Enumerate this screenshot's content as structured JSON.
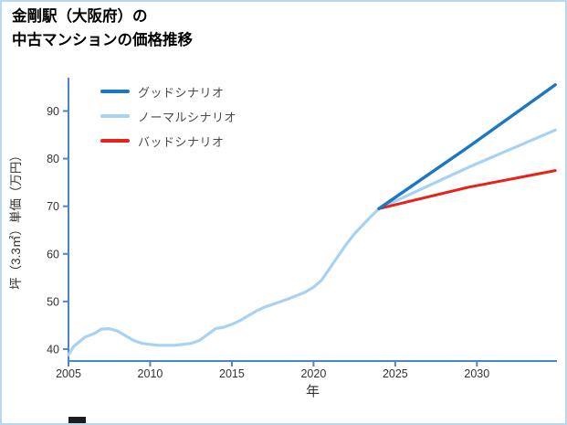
{
  "page": {
    "title_line1": "金剛駅（大阪府）の",
    "title_line2": "中古マンションの価格推移"
  },
  "chart_data": {
    "type": "line",
    "title": "金剛駅（大阪府）の中古マンションの価格推移",
    "xlabel": "年",
    "ylabel": "坪（3.3㎡）単価（万円）",
    "xlim": [
      2005,
      2034.9
    ],
    "ylim": [
      37.5,
      97
    ],
    "xticks": [
      2005,
      2010,
      2015,
      2020,
      2025,
      2030
    ],
    "yticks": [
      40,
      50,
      60,
      70,
      80,
      90
    ],
    "grid": false,
    "legend_position": "top-left",
    "colors": {
      "axis": "#4a86c2",
      "tick_label": "#333333",
      "good": "#1a78c2",
      "normal": "#a8d2f2",
      "bad": "#e62219"
    },
    "historical": {
      "color": "#a8d2f2",
      "x": [
        2005,
        2005.3,
        2006,
        2006.6,
        2007,
        2007.5,
        2008,
        2008.5,
        2009,
        2009.5,
        2010,
        2010.5,
        2011,
        2011.5,
        2012,
        2012.5,
        2013,
        2013.5,
        2014,
        2014.5,
        2015,
        2015.5,
        2016,
        2016.5,
        2017,
        2017.5,
        2018,
        2018.5,
        2019,
        2019.5,
        2020,
        2020.5,
        2021,
        2021.5,
        2022,
        2022.5,
        2023,
        2023.5,
        2024
      ],
      "y": [
        38.8,
        40.5,
        42.5,
        43.3,
        44.2,
        44.3,
        43.8,
        42.8,
        41.8,
        41.2,
        41.0,
        40.8,
        40.8,
        40.8,
        41.0,
        41.2,
        41.8,
        43.0,
        44.3,
        44.6,
        45.2,
        46.0,
        47.0,
        48.0,
        48.8,
        49.4,
        50.0,
        50.6,
        51.3,
        52.0,
        53.0,
        54.5,
        57.0,
        59.5,
        62.0,
        64.2,
        66.0,
        67.8,
        69.5
      ]
    },
    "series": [
      {
        "name": "グッドシナリオ",
        "color": "#1a78c2",
        "x": [
          2024,
          2029.5,
          2034.8
        ],
        "y": [
          69.5,
          82.5,
          95.5
        ]
      },
      {
        "name": "ノーマルシナリオ",
        "color": "#a8d2f2",
        "x": [
          2024,
          2029.5,
          2034.8
        ],
        "y": [
          69.5,
          78.2,
          86.0
        ]
      },
      {
        "name": "バッドシナリオ",
        "color": "#e62219",
        "x": [
          2024,
          2029.5,
          2034.8
        ],
        "y": [
          69.5,
          74.0,
          77.5
        ]
      }
    ]
  }
}
